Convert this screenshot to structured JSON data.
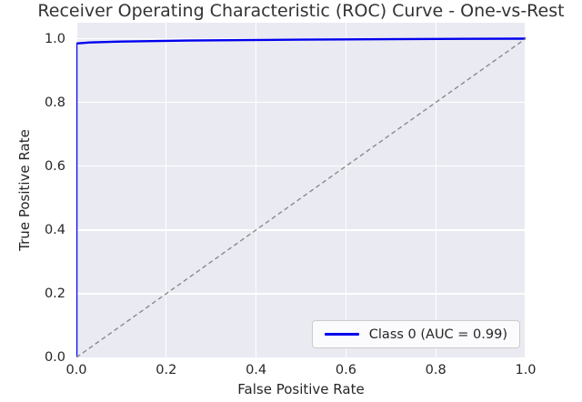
{
  "chart_data": {
    "type": "line",
    "title": "Receiver Operating Characteristic (ROC) Curve - One-vs-Rest",
    "xlabel": "False Positive Rate",
    "ylabel": "True Positive Rate",
    "xlim": [
      0.0,
      1.0
    ],
    "ylim": [
      0.0,
      1.05
    ],
    "x_ticks": [
      {
        "v": 0.0,
        "label": "0.0"
      },
      {
        "v": 0.2,
        "label": "0.2"
      },
      {
        "v": 0.4,
        "label": "0.4"
      },
      {
        "v": 0.6,
        "label": "0.6"
      },
      {
        "v": 0.8,
        "label": "0.8"
      },
      {
        "v": 1.0,
        "label": "1.0"
      }
    ],
    "y_ticks": [
      {
        "v": 0.0,
        "label": "0.0"
      },
      {
        "v": 0.2,
        "label": "0.2"
      },
      {
        "v": 0.4,
        "label": "0.4"
      },
      {
        "v": 0.6,
        "label": "0.6"
      },
      {
        "v": 0.8,
        "label": "0.8"
      },
      {
        "v": 1.0,
        "label": "1.0"
      }
    ],
    "grid": true,
    "legend_position": "lower right",
    "series": [
      {
        "name": "Class 0 (AUC = 0.99)",
        "auc": 0.99,
        "color": "#0000ee",
        "dashed": false,
        "width": 2.4,
        "points": [
          [
            0,
            0
          ],
          [
            0,
            0.985
          ],
          [
            0.03,
            0.988
          ],
          [
            0.1,
            0.991
          ],
          [
            0.25,
            0.994
          ],
          [
            0.5,
            0.997
          ],
          [
            0.75,
            0.999
          ],
          [
            1.0,
            1.0
          ]
        ]
      },
      {
        "name": "chance-diagonal",
        "color": "#8a8a8a",
        "dashed": true,
        "width": 1.4,
        "points": [
          [
            0,
            0
          ],
          [
            1.0,
            1.0
          ]
        ]
      }
    ],
    "colors": {
      "plot_background": "#eaeaf2",
      "gridline": "#ffffff",
      "curve": "#0000ee",
      "reference": "#8a8a8a",
      "text": "#262626"
    }
  },
  "legend": {
    "entries": [
      {
        "label": "Class 0 (AUC = 0.99)"
      }
    ]
  }
}
